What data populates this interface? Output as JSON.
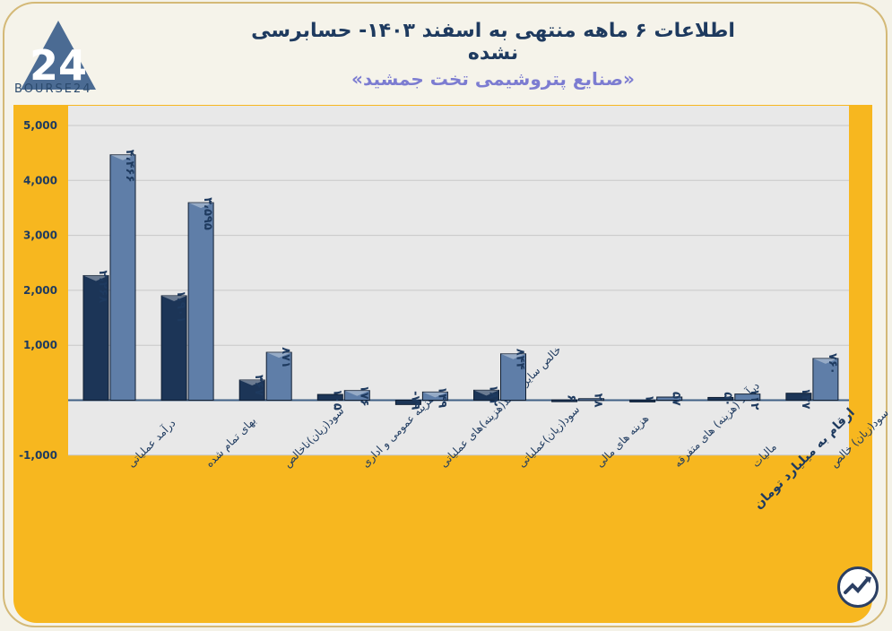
{
  "title": "اطلاعات ۶ ماهه منتهی به اسفند ۱۴۰۳- حسابرسی نشده",
  "subtitle": "«صنایع پتروشیمی تخت جمشید»",
  "logo_text": "BOURSE24",
  "unit_note": "ارقام به میلیارد تومان",
  "colors": {
    "series1": "#1c3557",
    "series2": "#5f7ea8",
    "plot_bg": "#e8e8e8",
    "frame": "#f7b71f"
  },
  "chart_data": {
    "type": "bar",
    "categories": [
      "درآمد عملیاتی",
      "بهای تمام شده",
      "سود(زیان)ناخالص",
      "هزینه عمومی و اداری",
      "خالص سایر درآمد(هزینه)های عملیاتی",
      "سود(زیان)عملیاتی",
      "هزینه های مالی",
      "درآمد (هزینه) های متفرقه",
      "مالیات",
      "سود(زیان) خالص"
    ],
    "series": [
      {
        "values": [
          2268,
          1901,
          367,
          105,
          -79,
          182,
          6,
          1,
          50,
          127
        ],
        "labels": [
          "۲،۲۶۸",
          "۱،۹۰۱",
          "۳۶۷",
          "۱۰۵",
          "-۷۹",
          "۱۸۲",
          "۶",
          "۱",
          "۵۰",
          "۱۲۷"
        ]
      },
      {
        "values": [
          4466,
          3595,
          871,
          176,
          149,
          844,
          28,
          57,
          112,
          760
        ],
        "labels": [
          "۴،۴۶۶",
          "۳،۵۹۵",
          "۸۷۱",
          "۱۷۶",
          "۱۴۹",
          "۸۴۴",
          "۲۸",
          "۵۷",
          "۱۱۲",
          "۷۶۰"
        ]
      }
    ],
    "yticks": [
      "5,000",
      "4,000",
      "3,000",
      "2,000",
      "1,000",
      "",
      "-1,000"
    ],
    "ytick_values": [
      5000,
      4000,
      3000,
      2000,
      1000,
      0,
      -1000
    ],
    "ylim": [
      -1000,
      5000
    ],
    "grid": true
  }
}
